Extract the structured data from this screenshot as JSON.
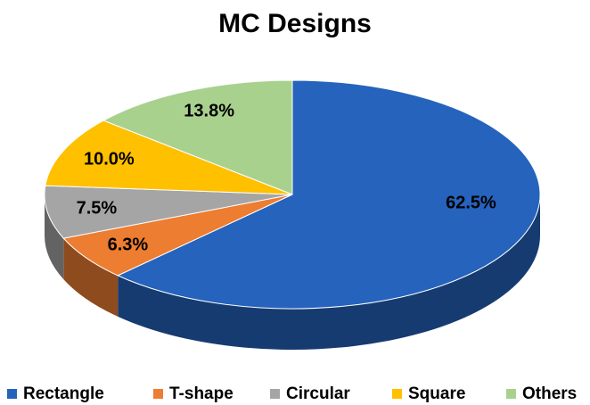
{
  "chart_data": {
    "type": "pie",
    "title": "MC Designs",
    "categories": [
      "Rectangle",
      "T-shape",
      "Circular",
      "Square",
      "Others"
    ],
    "values": [
      62.5,
      6.3,
      7.5,
      10.0,
      13.8
    ],
    "value_labels": [
      "62.5%",
      "6.3%",
      "7.5%",
      "10.0%",
      "13.8%"
    ],
    "colors": [
      "#2563bd",
      "#ed7d31",
      "#a5a5a5",
      "#ffc000",
      "#a9d18e"
    ],
    "legend": "bottom"
  }
}
